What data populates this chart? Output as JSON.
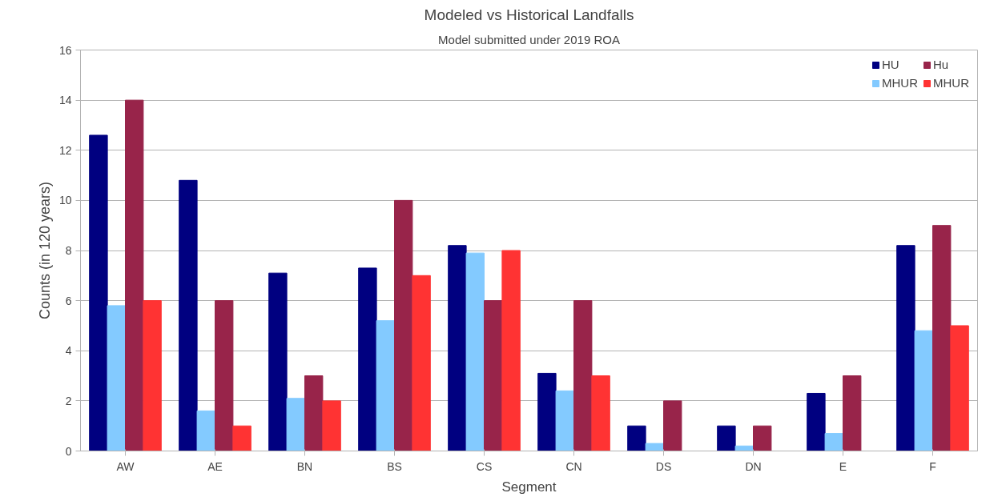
{
  "chart_data": {
    "type": "bar",
    "title": "Modeled vs Historical Landfalls",
    "subtitle": "Model submitted under 2019 ROA",
    "xlabel": "Segment",
    "ylabel": "Counts (in 120 years)",
    "categories": [
      "AW",
      "AE",
      "BN",
      "BS",
      "CS",
      "CN",
      "DS",
      "DN",
      "E",
      "F"
    ],
    "series": [
      {
        "name": "HU",
        "color": "#000080",
        "values": [
          12.6,
          10.8,
          7.1,
          7.3,
          8.2,
          3.1,
          1,
          1,
          2.3,
          8.2
        ]
      },
      {
        "name": "MHUR",
        "color": "#83caff",
        "values": [
          5.8,
          1.6,
          2.1,
          5.2,
          7.9,
          2.4,
          0.3,
          0.2,
          0.7,
          4.8
        ]
      },
      {
        "name": "Hu",
        "color": "#98244a",
        "values": [
          14,
          6,
          3,
          10,
          6,
          6,
          2,
          1,
          3,
          9
        ]
      },
      {
        "name": "MHUR",
        "color": "#ff3333",
        "values": [
          6,
          1,
          2,
          7,
          8,
          3,
          null,
          null,
          null,
          5
        ]
      }
    ],
    "ylim": [
      0,
      16
    ],
    "yticks": [
      0,
      2,
      4,
      6,
      8,
      10,
      12,
      14,
      16
    ],
    "grid": "y",
    "legend": "top right"
  }
}
